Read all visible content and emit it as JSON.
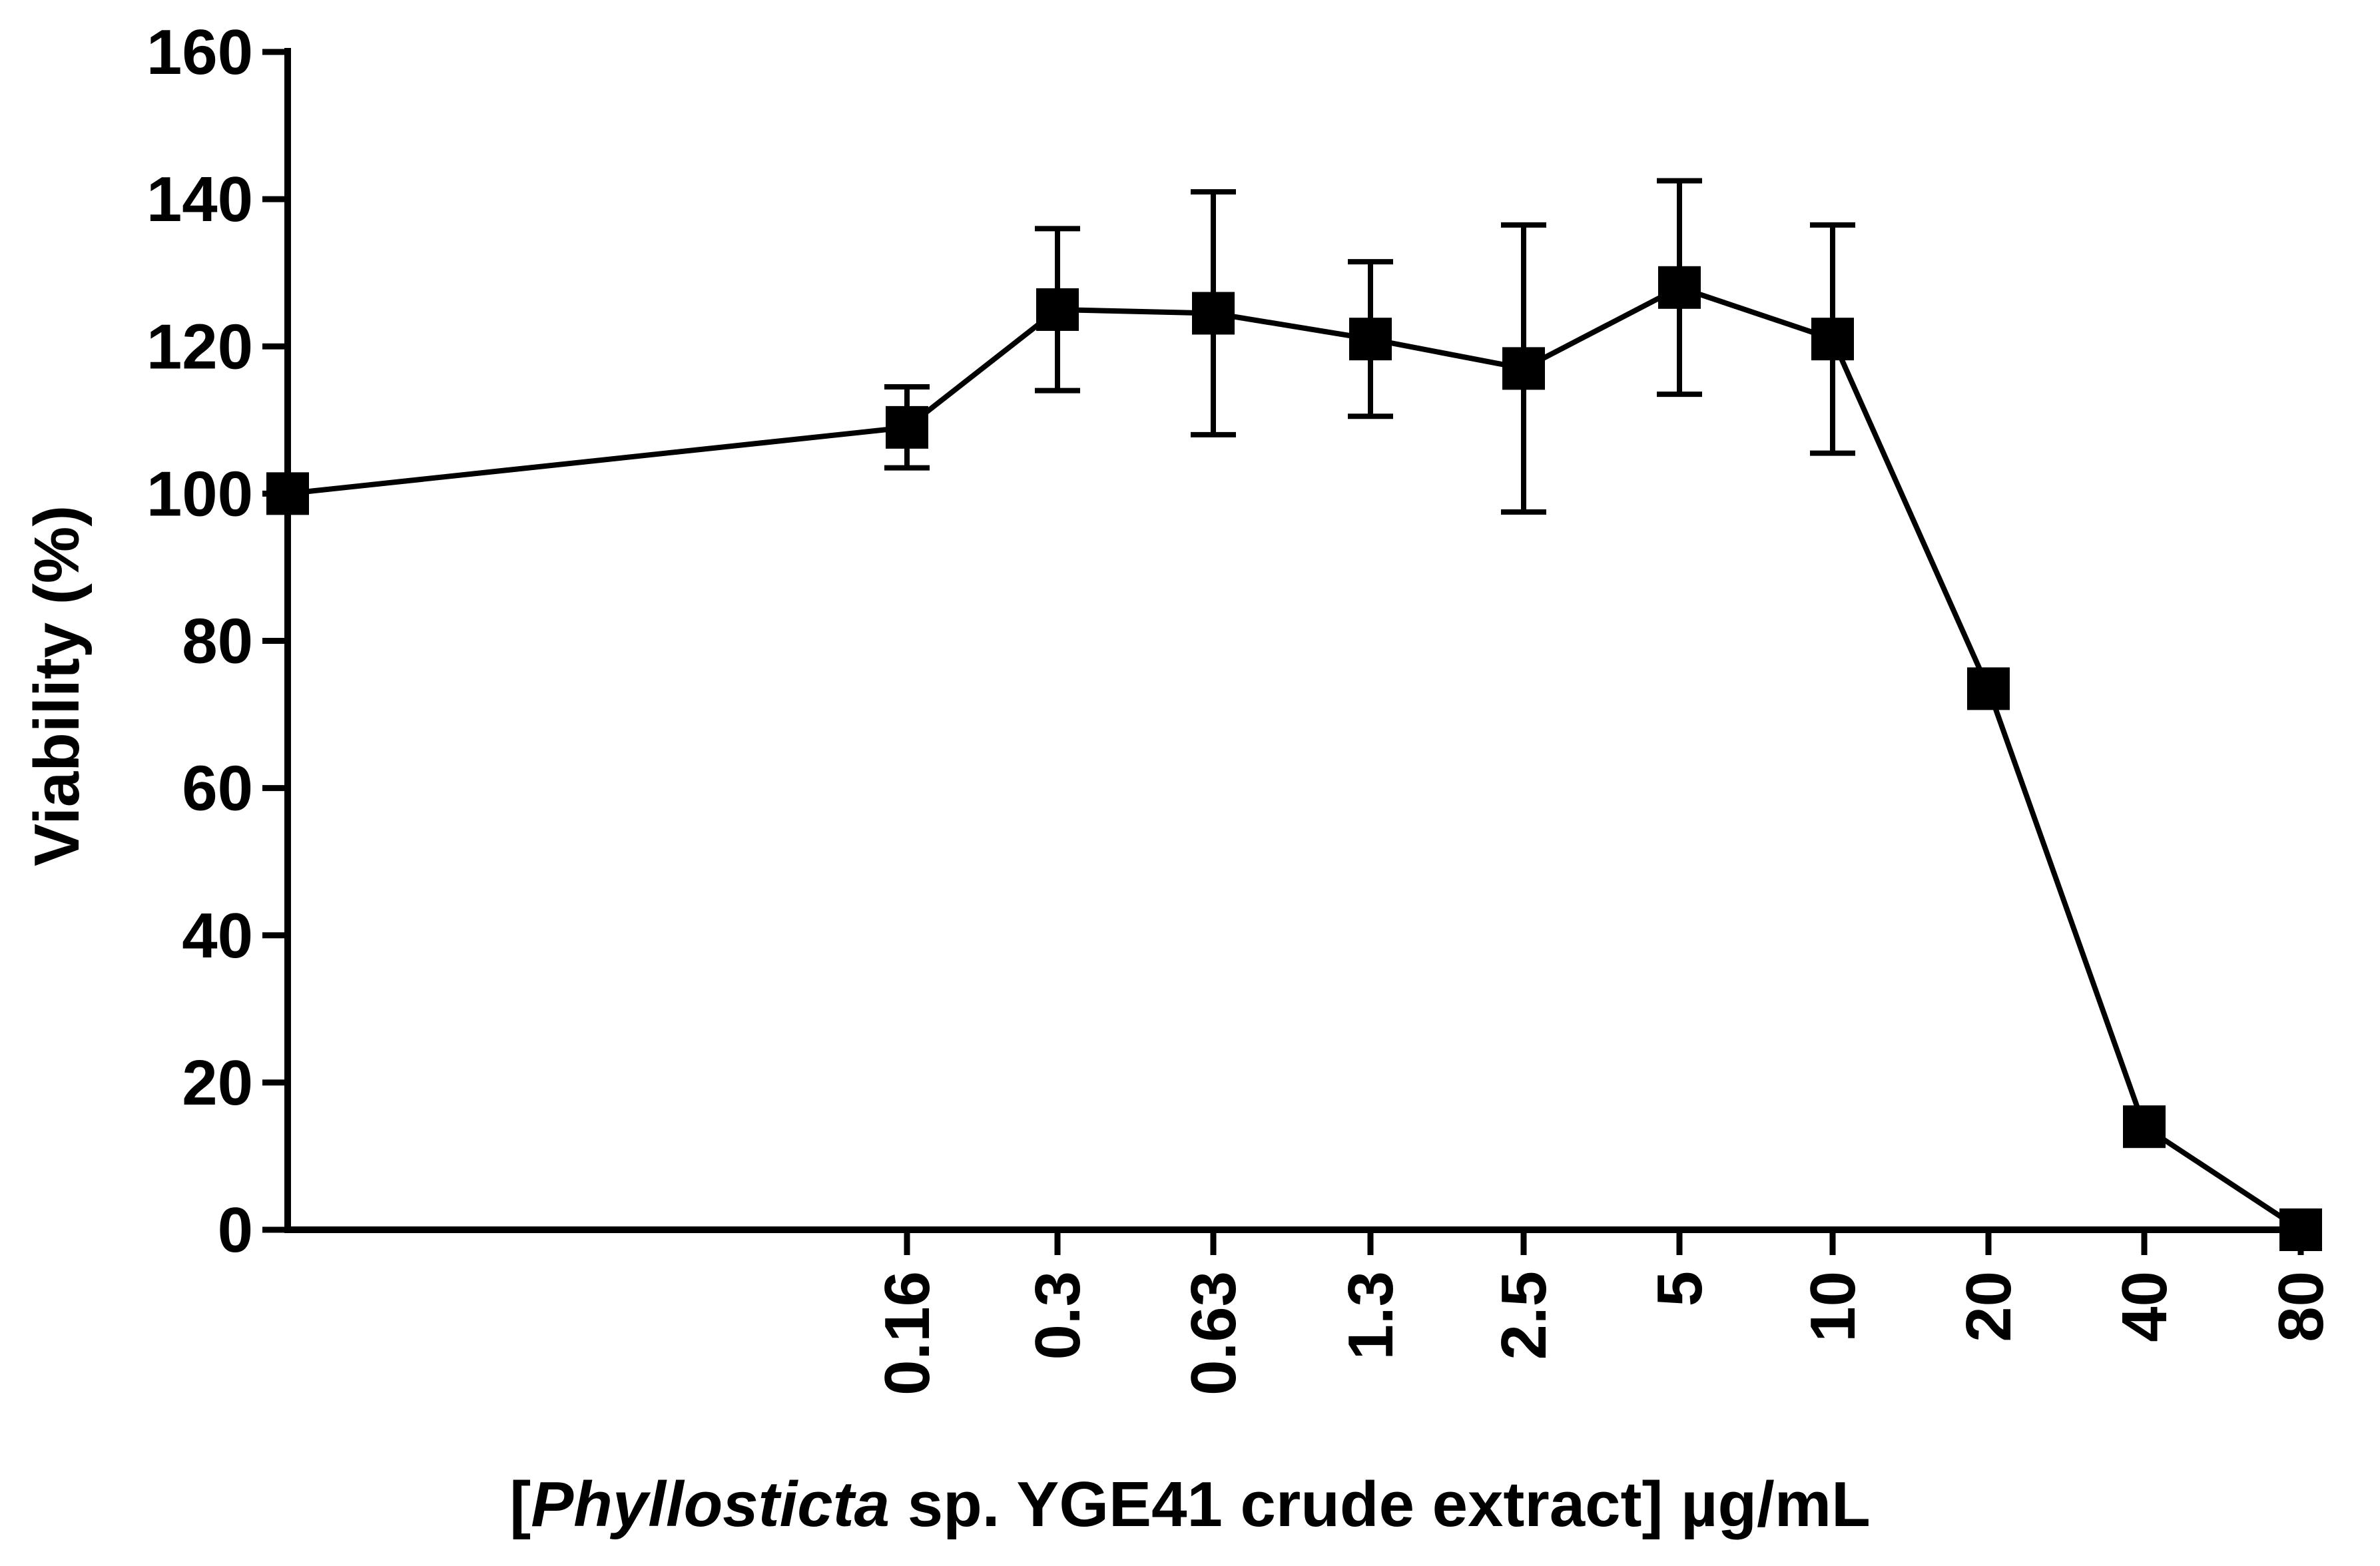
{
  "chart_data": {
    "type": "line",
    "title": "",
    "ylabel": "Viability (%)",
    "xlabel_parts": {
      "open": "[",
      "species": "Phyllosticta",
      "rest": " sp. YGE41 crude extract] µg/mL"
    },
    "ylim": [
      0,
      160
    ],
    "yticks": [
      "0",
      "20",
      "40",
      "60",
      "80",
      "100",
      "120",
      "140",
      "160"
    ],
    "x_scale": "log-like categorical positions; control point at axis origin",
    "categories": [
      "0.16",
      "0.3",
      "0.63",
      "1.3",
      "2.5",
      "5",
      "10",
      "20",
      "40",
      "80"
    ],
    "series": [
      {
        "name": "Viability",
        "points": [
          {
            "x": "control",
            "y": 100,
            "err": 0
          },
          {
            "x": "0.16",
            "y": 109,
            "err": 5.5
          },
          {
            "x": "0.3",
            "y": 125,
            "err": 11
          },
          {
            "x": "0.63",
            "y": 124.5,
            "err": 16.5
          },
          {
            "x": "1.3",
            "y": 121,
            "err": 10.5
          },
          {
            "x": "2.5",
            "y": 117,
            "err": 19.5
          },
          {
            "x": "5",
            "y": 128,
            "err": 14.5
          },
          {
            "x": "10",
            "y": 121,
            "err": 15.5
          },
          {
            "x": "20",
            "y": 73.5,
            "err": 0
          },
          {
            "x": "40",
            "y": 14,
            "err": 0
          },
          {
            "x": "80",
            "y": 0,
            "err": 0
          }
        ],
        "color": "#000000",
        "marker": "square"
      }
    ]
  }
}
